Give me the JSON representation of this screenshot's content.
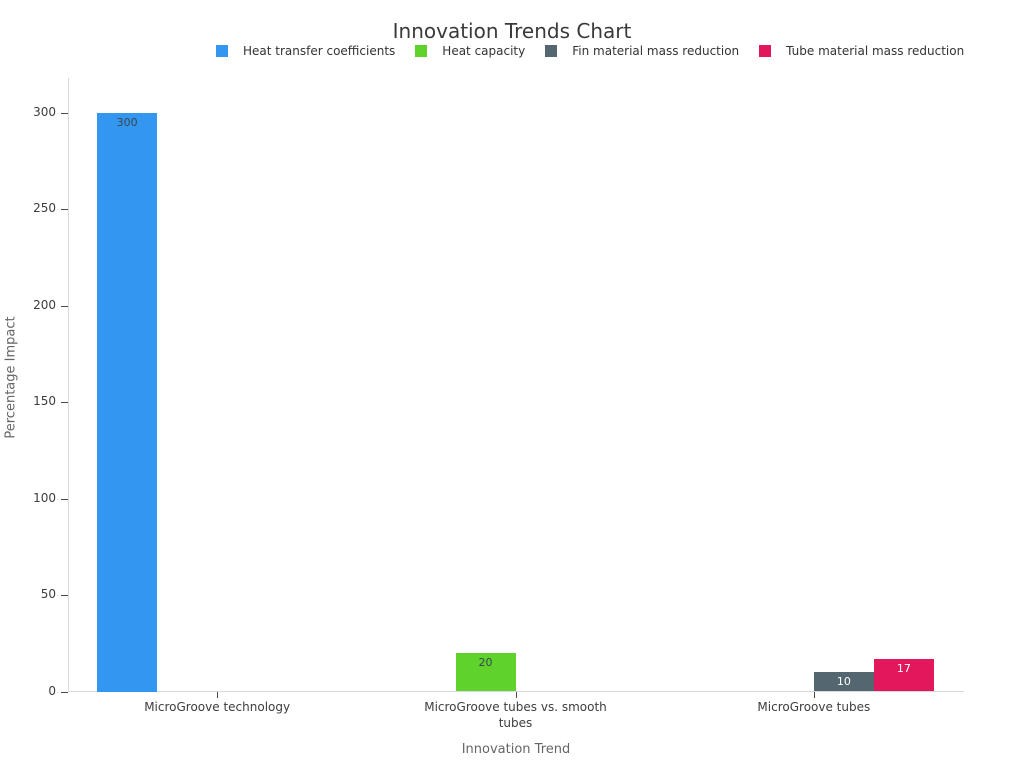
{
  "chart_data": {
    "type": "bar",
    "title": "Innovation Trends Chart",
    "xlabel": "Innovation Trend",
    "ylabel": "Percentage Impact",
    "ylim": [
      0,
      318
    ],
    "yticks": [
      0,
      50,
      100,
      150,
      200,
      250,
      300
    ],
    "grid": false,
    "legend_position": "top-center",
    "background_color": "#ffffff",
    "axis_line_color": "#d9d9d9",
    "categories": [
      "MicroGroove technology",
      "MicroGroove tubes vs. smooth tubes",
      "MicroGroove tubes"
    ],
    "series": [
      {
        "name": "Heat transfer coefficients",
        "color": "#3396F0",
        "label_color": "#37474F",
        "values": [
          300,
          null,
          null
        ]
      },
      {
        "name": "Heat capacity",
        "color": "#5FD32B",
        "label_color": "#37474F",
        "values": [
          null,
          20,
          null
        ]
      },
      {
        "name": "Fin material mass reduction",
        "color": "#54666F",
        "label_color": "#FFFFFF",
        "values": [
          null,
          null,
          10
        ]
      },
      {
        "name": "Tube material mass reduction",
        "color": "#E3175C",
        "label_color": "#FFFFFF",
        "values": [
          null,
          null,
          17
        ]
      }
    ]
  }
}
